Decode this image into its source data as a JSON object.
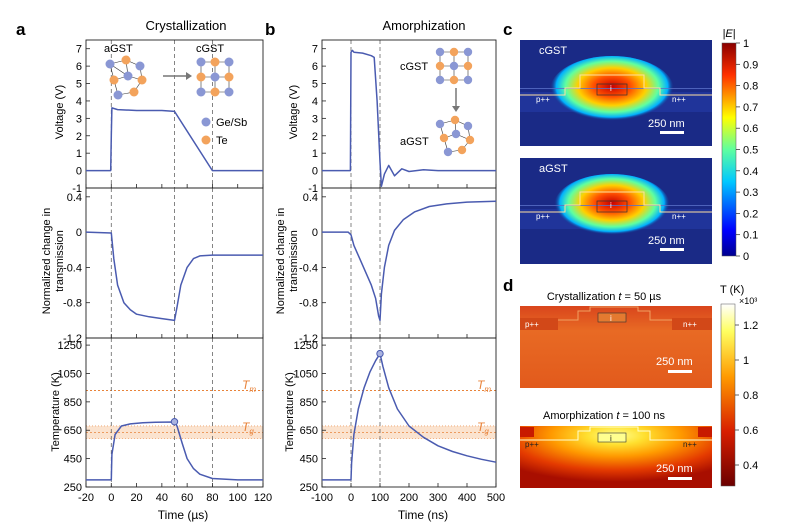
{
  "panels": {
    "a": {
      "letter": "a",
      "title": "Crystallization"
    },
    "b": {
      "letter": "b",
      "title": "Amorphization"
    },
    "c": {
      "letter": "c"
    },
    "d": {
      "letter": "d"
    }
  },
  "colors": {
    "line": "#4a5bb0",
    "orange": "#e8833a",
    "band": "#fbe3cf",
    "atom_blue": "#8a97d4",
    "atom_orange": "#f3a35c",
    "dark_panel": "#1a2a86"
  },
  "schematics": {
    "a_left": "aGST",
    "a_right": "cGST",
    "b_top": "cGST",
    "b_bottom": "aGST",
    "legend_gesb": "Ge/Sb",
    "legend_te": "Te"
  },
  "axes": {
    "voltage_label": "Voltage (V)",
    "transmission_label_1": "Normalized change in",
    "transmission_label_2": "transmission",
    "temperature_label": "Temperature (K)",
    "time_us": "Time (µs)",
    "time_ns": "Time (ns)",
    "tm": "T",
    "tm_sub": "m",
    "tg": "T",
    "tg_sub": "g"
  },
  "chart_data": [
    {
      "type": "line",
      "panel": "a",
      "name": "voltage-a",
      "xlim": [
        -20,
        120
      ],
      "ylim": [
        -1,
        7.5
      ],
      "yticks": [
        "7",
        "6",
        "5",
        "4",
        "3",
        "2",
        "1",
        "0",
        "-1"
      ],
      "vlines": [
        0,
        50,
        80
      ],
      "x": [
        -20,
        -0.5,
        0,
        0.5,
        5,
        20,
        40,
        50,
        80,
        120
      ],
      "y": [
        0,
        0,
        2,
        3.6,
        3.5,
        3.45,
        3.45,
        3.4,
        0,
        0
      ]
    },
    {
      "type": "line",
      "panel": "a",
      "name": "transmission-a",
      "xlim": [
        -20,
        120
      ],
      "ylim": [
        -1.2,
        0.5
      ],
      "yticks": [
        "0.4",
        "0",
        "-0.4",
        "-0.8",
        "-1.2"
      ],
      "vlines": [
        0,
        50,
        80
      ],
      "x": [
        -20,
        0,
        2,
        5,
        10,
        15,
        20,
        30,
        40,
        50,
        52,
        55,
        60,
        65,
        70,
        80,
        100,
        120
      ],
      "y": [
        0,
        -0.01,
        -0.3,
        -0.6,
        -0.8,
        -0.88,
        -0.93,
        -0.96,
        -0.98,
        -1.0,
        -0.85,
        -0.6,
        -0.4,
        -0.3,
        -0.27,
        -0.26,
        -0.26,
        -0.26
      ]
    },
    {
      "type": "line",
      "panel": "a",
      "name": "temperature-a",
      "xlim": [
        -20,
        120
      ],
      "ylim": [
        250,
        1300
      ],
      "yticks": [
        "1250",
        "1050",
        "850",
        "650",
        "450",
        "250"
      ],
      "vlines": [
        0,
        50,
        80
      ],
      "tm": 930,
      "tg_band": [
        590,
        680
      ],
      "tg": 635,
      "marker": [
        50,
        710
      ],
      "x": [
        -20,
        0,
        0.5,
        3,
        8,
        15,
        25,
        35,
        50,
        52,
        56,
        60,
        65,
        70,
        80,
        100,
        120
      ],
      "y": [
        300,
        300,
        480,
        620,
        680,
        695,
        703,
        706,
        708,
        680,
        560,
        450,
        380,
        340,
        310,
        300,
        300
      ]
    },
    {
      "type": "line",
      "panel": "b",
      "name": "voltage-b",
      "xlim": [
        -100,
        500
      ],
      "ylim": [
        -1,
        7.5
      ],
      "yticks": [
        "7",
        "6",
        "5",
        "4",
        "3",
        "2",
        "1",
        "0",
        "-1"
      ],
      "vlines": [
        0,
        100
      ],
      "x": [
        -100,
        -2,
        0,
        5,
        10,
        40,
        70,
        80,
        90,
        100,
        105,
        115,
        130,
        150,
        175,
        200,
        250,
        300,
        500
      ],
      "y": [
        0,
        0,
        6.8,
        6.9,
        6.8,
        6.75,
        6.6,
        6.5,
        4.0,
        0.5,
        -0.9,
        -0.2,
        0.3,
        -0.3,
        0.1,
        -0.05,
        0.05,
        0,
        0
      ]
    },
    {
      "type": "line",
      "panel": "b",
      "name": "transmission-b",
      "xlim": [
        -100,
        500
      ],
      "ylim": [
        -1.2,
        0.5
      ],
      "yticks": [
        "0.4",
        "0",
        "-0.4",
        "-0.8",
        "-1.2"
      ],
      "vlines": [
        0,
        100
      ],
      "x": [
        -100,
        -10,
        0,
        10,
        30,
        50,
        70,
        85,
        95,
        100,
        105,
        115,
        130,
        150,
        180,
        220,
        270,
        330,
        400,
        500
      ],
      "y": [
        0,
        0,
        -0.03,
        -0.15,
        -0.3,
        -0.45,
        -0.6,
        -0.75,
        -0.95,
        -1.0,
        -0.7,
        -0.4,
        -0.15,
        0.02,
        0.14,
        0.23,
        0.29,
        0.32,
        0.34,
        0.35
      ]
    },
    {
      "type": "line",
      "panel": "b",
      "name": "temperature-b",
      "xlim": [
        -100,
        500
      ],
      "ylim": [
        250,
        1300
      ],
      "yticks": [
        "1250",
        "1050",
        "850",
        "650",
        "450",
        "250"
      ],
      "vlines": [
        0,
        100
      ],
      "tm": 930,
      "tg_band": [
        590,
        680
      ],
      "tg": 635,
      "marker": [
        100,
        1190
      ],
      "x": [
        -100,
        0,
        2,
        10,
        25,
        45,
        65,
        85,
        100,
        110,
        130,
        160,
        200,
        250,
        300,
        350,
        400,
        450,
        500
      ],
      "y": [
        300,
        300,
        420,
        620,
        800,
        950,
        1060,
        1140,
        1190,
        1100,
        950,
        800,
        680,
        600,
        540,
        500,
        470,
        445,
        425
      ]
    }
  ],
  "c": {
    "label_top": "cGST",
    "label_bottom": "aGST",
    "p_label": "p++",
    "n_label": "n++",
    "i_label": "i",
    "scale": "250 nm",
    "cbar_title": "|E|",
    "cbar_ticks": [
      "1",
      "0.9",
      "0.8",
      "0.7",
      "0.6",
      "0.5",
      "0.4",
      "0.3",
      "0.2",
      "0.1",
      "0"
    ]
  },
  "d": {
    "title_top_prefix": "Crystallization ",
    "title_top_var": "t",
    "title_top_suffix": " = 50 µs",
    "title_bottom_prefix": "Amorphization ",
    "title_bottom_var": "t",
    "title_bottom_suffix": " = 100 ns",
    "p_label": "p++",
    "n_label": "n++",
    "i_label": "i",
    "scale": "250 nm",
    "cbar_title": "T (K)",
    "cbar_exp": "×10³",
    "cbar_ticks": [
      "1.2",
      "1",
      "0.8",
      "0.6",
      "0.4"
    ]
  }
}
